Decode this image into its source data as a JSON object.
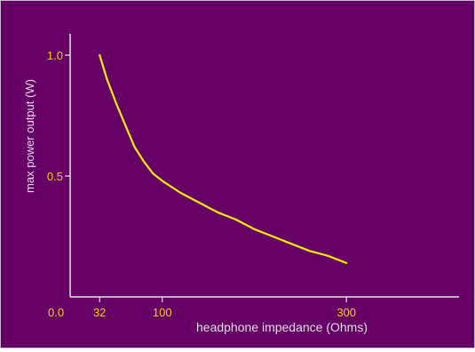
{
  "colors": {
    "background": "#660066",
    "axis": "#e6e6e6",
    "curve": "#ffee00",
    "tick_label": "#ffcc00",
    "axis_label": "#e0e0e0"
  },
  "chart_data": {
    "type": "line",
    "title": "",
    "xlabel": "headphone impedance (Ohms)",
    "ylabel": "max power output (W)",
    "x_origin_label": "0.0",
    "xlim": [
      0,
      400
    ],
    "ylim": [
      0.0,
      1.1
    ],
    "x_ticks": [
      {
        "value": 32,
        "label": "32"
      },
      {
        "value": 100,
        "label": "100"
      },
      {
        "value": 300,
        "label": "300"
      }
    ],
    "y_ticks": [
      {
        "value": 0.5,
        "label": "0.5"
      },
      {
        "value": 1.0,
        "label": "1.0"
      }
    ],
    "grid": false,
    "series": [
      {
        "x": [
          32,
          40,
          50,
          60,
          70,
          80,
          90,
          100,
          120,
          140,
          160,
          180,
          200,
          220,
          240,
          260,
          280,
          300
        ],
        "y": [
          1.0,
          0.9,
          0.8,
          0.71,
          0.62,
          0.56,
          0.51,
          0.48,
          0.43,
          0.39,
          0.35,
          0.32,
          0.28,
          0.25,
          0.22,
          0.19,
          0.17,
          0.14
        ]
      }
    ]
  }
}
